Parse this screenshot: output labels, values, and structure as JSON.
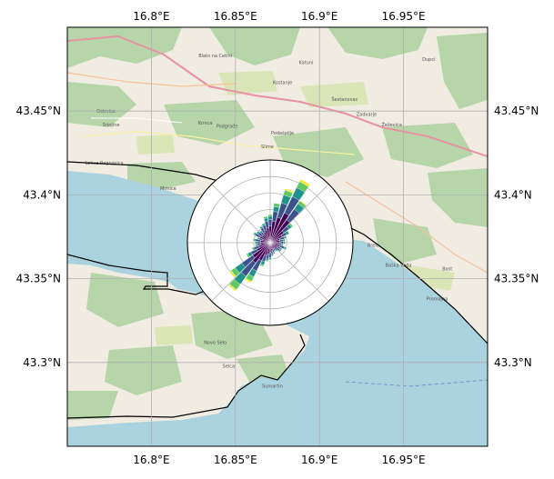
{
  "map": {
    "x_ticks": [
      {
        "lon": 16.8,
        "label": "16.8°E"
      },
      {
        "lon": 16.85,
        "label": "16.85°E"
      },
      {
        "lon": 16.9,
        "label": "16.9°E"
      },
      {
        "lon": 16.95,
        "label": "16.95°E"
      }
    ],
    "y_ticks": [
      {
        "lat": 43.45,
        "label": "43.45°N"
      },
      {
        "lat": 43.4,
        "label": "43.4°N"
      },
      {
        "lat": 43.35,
        "label": "43.35°N"
      },
      {
        "lat": 43.3,
        "label": "43.3°N"
      }
    ],
    "extent": {
      "lon": [
        16.75,
        17.0
      ],
      "lat": [
        43.25,
        43.5
      ]
    },
    "colors": {
      "sea": "#abd3df",
      "land": "#f0ece2",
      "forest": "#add19e",
      "border": "#000000",
      "grid": "#b0b0b0",
      "motorway": "#e892a2"
    },
    "place_labels": [
      {
        "name": "Blato na Cetini",
        "lon": 16.838,
        "lat": 43.482
      },
      {
        "name": "Kostanje",
        "lon": 16.878,
        "lat": 43.466
      },
      {
        "name": "Katuni",
        "lon": 16.892,
        "lat": 43.478
      },
      {
        "name": "Ostrvica",
        "lon": 16.773,
        "lat": 43.449
      },
      {
        "name": "Srinjine",
        "lon": 16.776,
        "lat": 43.441
      },
      {
        "name": "Krnica",
        "lon": 16.832,
        "lat": 43.442
      },
      {
        "name": "Podgrađe",
        "lon": 16.845,
        "lat": 43.44
      },
      {
        "name": "Lokva Rogoznica",
        "lon": 16.772,
        "lat": 43.418
      },
      {
        "name": "Mimice",
        "lon": 16.81,
        "lat": 43.403
      },
      {
        "name": "Slime",
        "lon": 16.869,
        "lat": 43.428
      },
      {
        "name": "Podašpilje",
        "lon": 16.878,
        "lat": 43.436
      },
      {
        "name": "Zadvarje",
        "lon": 16.928,
        "lat": 43.447
      },
      {
        "name": "Šestanovac",
        "lon": 16.915,
        "lat": 43.456
      },
      {
        "name": "Žeževica",
        "lon": 16.943,
        "lat": 43.441
      },
      {
        "name": "Brela",
        "lon": 16.932,
        "lat": 43.369
      },
      {
        "name": "Baška Voda",
        "lon": 16.947,
        "lat": 43.357
      },
      {
        "name": "Promajna",
        "lon": 16.97,
        "lat": 43.337
      },
      {
        "name": "Bast",
        "lon": 16.976,
        "lat": 43.355
      },
      {
        "name": "Novo Selo",
        "lon": 16.838,
        "lat": 43.311
      },
      {
        "name": "Selca",
        "lon": 16.846,
        "lat": 43.297
      },
      {
        "name": "Sumartin",
        "lon": 16.872,
        "lat": 43.285
      },
      {
        "name": "Dupci",
        "lon": 16.965,
        "lat": 43.48
      }
    ]
  },
  "chart_data": {
    "type": "polar-bar",
    "description_free": true,
    "center": {
      "lon": 16.87,
      "lat": 43.37
    },
    "radial_rings": [
      1,
      2,
      3,
      4,
      5
    ],
    "sector_count": 36,
    "direction_deg": [
      0,
      10,
      20,
      30,
      40,
      50,
      60,
      70,
      80,
      90,
      100,
      110,
      120,
      130,
      140,
      150,
      160,
      170,
      180,
      190,
      200,
      210,
      220,
      230,
      240,
      250,
      260,
      270,
      280,
      290,
      300,
      310,
      320,
      330,
      340,
      350
    ],
    "bin_colors": [
      "#440154",
      "#3b528b",
      "#21918c",
      "#5ec962",
      "#fde725"
    ],
    "stacks": [
      [
        1.0,
        0.4,
        0.2,
        0.1,
        0.0
      ],
      [
        1.3,
        0.6,
        0.3,
        0.2,
        0.0
      ],
      [
        1.6,
        0.9,
        0.5,
        0.3,
        0.1
      ],
      [
        2.0,
        1.1,
        0.6,
        0.4,
        0.15
      ],
      [
        1.7,
        0.8,
        0.4,
        0.2,
        0.05
      ],
      [
        1.0,
        0.4,
        0.2,
        0.1,
        0.0
      ],
      [
        0.8,
        0.3,
        0.15,
        0.05,
        0.0
      ],
      [
        0.6,
        0.3,
        0.1,
        0.05,
        0.0
      ],
      [
        0.6,
        0.2,
        0.1,
        0.0,
        0.0
      ],
      [
        0.6,
        0.2,
        0.1,
        0.0,
        0.0
      ],
      [
        0.5,
        0.2,
        0.1,
        0.0,
        0.0
      ],
      [
        0.6,
        0.3,
        0.1,
        0.05,
        0.0
      ],
      [
        0.5,
        0.2,
        0.1,
        0.0,
        0.0
      ],
      [
        0.5,
        0.2,
        0.1,
        0.0,
        0.0
      ],
      [
        0.4,
        0.2,
        0.05,
        0.0,
        0.0
      ],
      [
        0.4,
        0.15,
        0.05,
        0.0,
        0.0
      ],
      [
        0.4,
        0.2,
        0.1,
        0.0,
        0.0
      ],
      [
        0.5,
        0.2,
        0.1,
        0.0,
        0.0
      ],
      [
        0.6,
        0.3,
        0.1,
        0.05,
        0.0
      ],
      [
        0.7,
        0.3,
        0.1,
        0.05,
        0.0
      ],
      [
        0.8,
        0.4,
        0.2,
        0.1,
        0.0
      ],
      [
        1.2,
        0.7,
        0.4,
        0.3,
        0.1
      ],
      [
        1.5,
        1.0,
        0.6,
        0.4,
        0.1
      ],
      [
        1.3,
        0.8,
        0.5,
        0.3,
        0.1
      ],
      [
        0.9,
        0.4,
        0.2,
        0.1,
        0.0
      ],
      [
        0.7,
        0.3,
        0.1,
        0.05,
        0.0
      ],
      [
        0.6,
        0.2,
        0.1,
        0.0,
        0.0
      ],
      [
        0.6,
        0.2,
        0.1,
        0.05,
        0.0
      ],
      [
        0.6,
        0.3,
        0.1,
        0.05,
        0.0
      ],
      [
        0.5,
        0.2,
        0.1,
        0.0,
        0.0
      ],
      [
        0.7,
        0.3,
        0.1,
        0.05,
        0.0
      ],
      [
        0.6,
        0.3,
        0.1,
        0.0,
        0.0
      ],
      [
        0.6,
        0.2,
        0.1,
        0.0,
        0.0
      ],
      [
        0.7,
        0.3,
        0.1,
        0.05,
        0.0
      ],
      [
        0.8,
        0.3,
        0.1,
        0.05,
        0.0
      ],
      [
        0.9,
        0.4,
        0.2,
        0.1,
        0.0
      ]
    ]
  }
}
